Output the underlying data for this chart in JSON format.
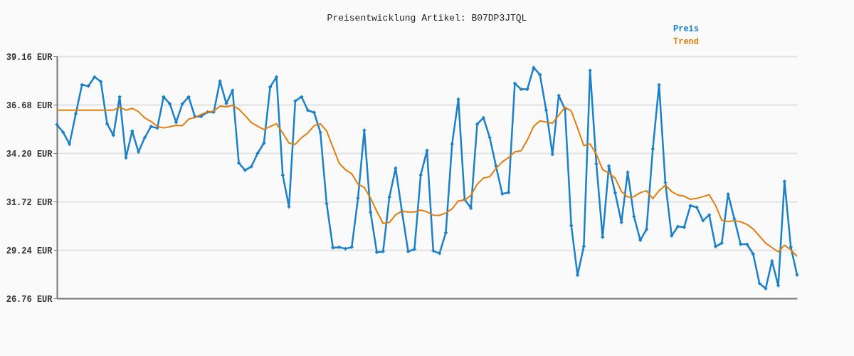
{
  "chart_data": {
    "type": "line",
    "title": "Preisentwicklung Artikel: B07DP3JTQL",
    "categories": [
      null,
      null,
      null,
      null,
      null,
      null,
      null,
      null,
      null,
      null,
      null,
      null,
      null,
      null,
      null,
      null,
      null,
      null,
      null,
      null,
      null,
      null,
      null,
      null,
      null,
      null,
      null,
      null,
      null,
      null,
      null,
      null,
      null,
      null,
      null,
      null,
      null,
      null,
      null,
      null,
      null,
      null,
      null,
      null,
      null,
      null,
      null,
      null,
      null,
      null,
      null,
      null,
      null,
      null,
      null,
      null,
      null,
      null,
      null,
      null,
      null,
      null,
      null,
      null,
      null,
      null,
      null,
      null,
      null,
      null,
      null,
      null,
      null,
      null,
      null,
      null,
      null,
      null,
      null,
      null,
      null,
      null,
      null,
      null,
      null,
      null,
      null,
      null,
      null,
      null,
      null,
      null,
      null,
      null,
      null,
      null,
      null,
      null,
      null,
      null,
      null,
      null,
      null,
      null,
      null,
      null,
      null,
      null,
      null,
      null,
      null,
      null,
      null,
      null,
      null,
      null,
      null,
      null,
      null
    ],
    "series": [
      {
        "name": "Preis",
        "color": "#1a80c8",
        "marker": "cross",
        "values": [
          35.66,
          35.26,
          34.66,
          36.21,
          37.7,
          37.63,
          38.1,
          37.86,
          35.7,
          35.11,
          37.08,
          33.96,
          35.33,
          34.26,
          34.99,
          35.56,
          35.48,
          37.08,
          36.72,
          35.77,
          36.72,
          37.08,
          36.06,
          36.08,
          36.3,
          36.3,
          37.89,
          36.74,
          37.41,
          33.69,
          33.32,
          33.51,
          34.19,
          34.71,
          37.59,
          38.1,
          33.07,
          31.45,
          36.87,
          37.08,
          36.39,
          36.28,
          35.26,
          31.61,
          29.35,
          29.38,
          29.3,
          29.38,
          31.89,
          35.37,
          31.16,
          29.12,
          29.16,
          31.94,
          33.43,
          31.22,
          29.16,
          29.27,
          33.08,
          34.33,
          29.19,
          29.06,
          30.12,
          34.66,
          36.96,
          31.83,
          31.38,
          35.68,
          36.01,
          35.0,
          33.53,
          32.11,
          32.18,
          37.77,
          37.47,
          37.47,
          38.58,
          38.22,
          36.4,
          34.13,
          37.15,
          36.44,
          30.49,
          27.95,
          29.42,
          38.43,
          33.65,
          29.89,
          33.54,
          32.16,
          30.65,
          33.22,
          30.95,
          29.74,
          30.29,
          34.41,
          37.69,
          32.69,
          29.96,
          30.44,
          30.4,
          31.51,
          31.42,
          30.74,
          31.03,
          29.41,
          29.59,
          32.1,
          30.83,
          29.53,
          29.53,
          29.03,
          27.53,
          27.26,
          28.67,
          27.41,
          32.75,
          29.39,
          27.96
        ]
      },
      {
        "name": "Trend",
        "color": "#e07f10",
        "marker": "none",
        "values": [
          36.4,
          36.4,
          36.4,
          36.4,
          36.4,
          36.4,
          36.4,
          36.4,
          36.4,
          36.4,
          36.55,
          36.4,
          36.49,
          36.32,
          36.0,
          35.82,
          35.57,
          35.49,
          35.55,
          35.62,
          35.6,
          35.94,
          36.02,
          36.18,
          36.3,
          36.35,
          36.61,
          36.57,
          36.64,
          36.45,
          36.12,
          35.76,
          35.57,
          35.41,
          35.56,
          35.7,
          35.23,
          34.71,
          34.65,
          34.99,
          35.23,
          35.6,
          35.7,
          35.33,
          34.5,
          33.68,
          33.35,
          33.14,
          32.61,
          32.44,
          31.89,
          31.22,
          30.6,
          30.64,
          31.04,
          31.22,
          31.18,
          31.18,
          31.28,
          31.19,
          31.02,
          31.01,
          31.13,
          31.34,
          31.75,
          31.79,
          32.04,
          32.6,
          32.92,
          32.99,
          33.41,
          33.75,
          33.97,
          34.26,
          34.32,
          34.87,
          35.57,
          35.85,
          35.79,
          35.73,
          36.14,
          36.55,
          36.36,
          35.48,
          34.58,
          34.67,
          34.14,
          33.35,
          33.17,
          32.92,
          32.23,
          31.95,
          31.97,
          32.17,
          32.27,
          31.87,
          32.27,
          32.56,
          32.23,
          32.05,
          31.99,
          31.83,
          31.88,
          31.97,
          32.07,
          31.52,
          30.76,
          30.69,
          30.74,
          30.68,
          30.55,
          30.31,
          29.95,
          29.58,
          29.36,
          29.14,
          29.48,
          29.24,
          28.91
        ]
      }
    ],
    "ylim": [
      26.76,
      39.16
    ],
    "yticks": [
      {
        "value": 26.76,
        "label": "26.76 EUR"
      },
      {
        "value": 29.24,
        "label": "29.24 EUR"
      },
      {
        "value": 31.72,
        "label": "31.72 EUR"
      },
      {
        "value": 34.2,
        "label": "34.20 EUR"
      },
      {
        "value": 36.68,
        "label": "36.68 EUR"
      },
      {
        "value": 39.16,
        "label": "39.16 EUR"
      }
    ],
    "grid": "y",
    "legend": "top right",
    "tick_labels": "y",
    "line_style": "solid"
  }
}
